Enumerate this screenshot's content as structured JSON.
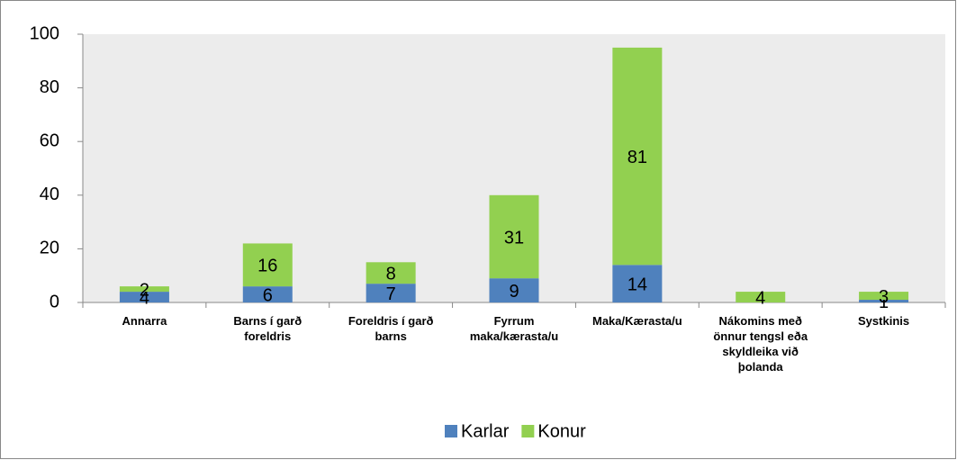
{
  "chart_data": {
    "type": "stacked_bar",
    "categories": [
      "Annarra",
      "Barns í garð foreldris",
      "Foreldris í garð barns",
      "Fyrrum maka/kærasta/u",
      "Maka/Kærasta/u",
      "Nákomins með önnur tengsl eða skyldleika við þolanda",
      "Systkinis"
    ],
    "series": [
      {
        "name": "Karlar",
        "color": "#4f81bd",
        "values": [
          4,
          6,
          7,
          9,
          14,
          null,
          1
        ]
      },
      {
        "name": "Konur",
        "color": "#92d050",
        "values": [
          2,
          16,
          8,
          31,
          81,
          4,
          3
        ]
      }
    ],
    "ylim": [
      0,
      100
    ],
    "yticks": [
      0,
      20,
      40,
      60,
      80,
      100
    ],
    "legend": "bottom"
  }
}
